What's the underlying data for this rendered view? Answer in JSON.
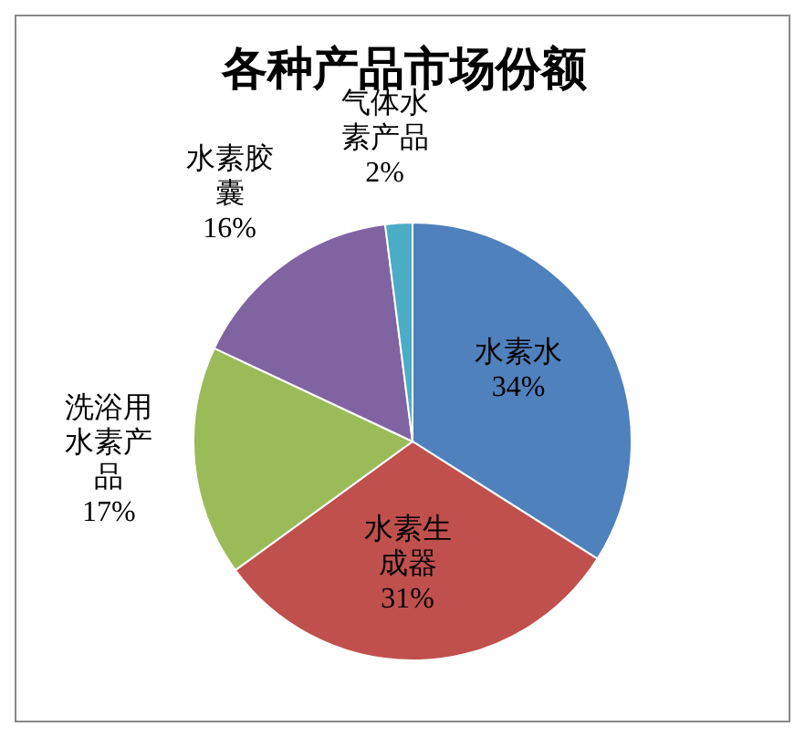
{
  "chart_data": {
    "type": "pie",
    "title": "各种产品市场份额",
    "categories": [
      "水素水",
      "水素生成器",
      "洗浴用水素产品",
      "水素胶囊",
      "气体水素产品"
    ],
    "values": [
      34,
      31,
      17,
      16,
      2
    ],
    "value_labels": [
      "34%",
      "31%",
      "17%",
      "16%",
      "2%"
    ],
    "colors": [
      "#4f81bd",
      "#c0504d",
      "#9bbb59",
      "#8064a2",
      "#4bacc6"
    ],
    "legend": false
  }
}
